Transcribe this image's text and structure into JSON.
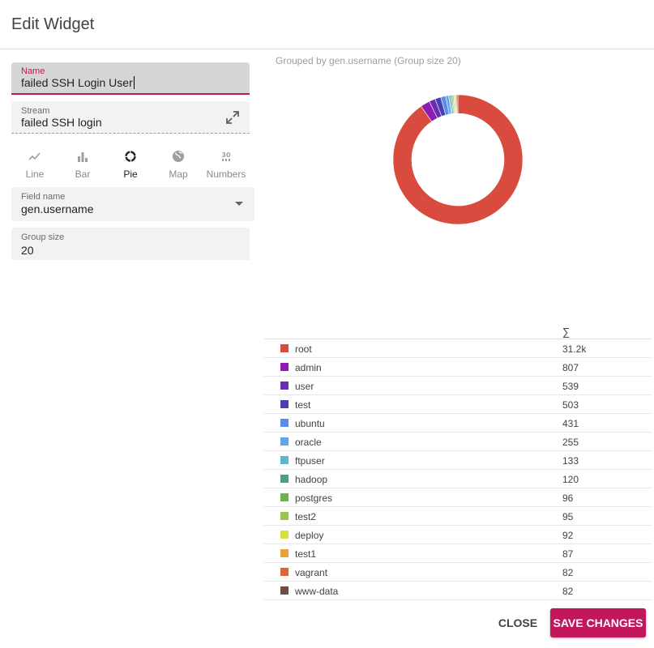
{
  "dialog": {
    "title": "Edit Widget"
  },
  "form": {
    "name_label": "Name",
    "name_value": "failed SSH Login User",
    "stream_label": "Stream",
    "stream_value": "failed SSH login",
    "field_name_label": "Field name",
    "field_name_value": "gen.username",
    "group_size_label": "Group size",
    "group_size_value": "20"
  },
  "visualizations": [
    {
      "label": "Line",
      "icon": "line-chart-icon",
      "active": false
    },
    {
      "label": "Bar",
      "icon": "bar-chart-icon",
      "active": false
    },
    {
      "label": "Pie",
      "icon": "pie-chart-icon",
      "active": true
    },
    {
      "label": "Map",
      "icon": "globe-icon",
      "active": false
    },
    {
      "label": "Numbers",
      "icon": "numbers-icon",
      "active": false
    }
  ],
  "chart_title": "Grouped by gen.username (Group size 20)",
  "table": {
    "sum_header": "∑",
    "rows": [
      {
        "name": "root",
        "count": "31.2k",
        "color": "#d94a3f"
      },
      {
        "name": "admin",
        "count": "807",
        "color": "#8e1cb1"
      },
      {
        "name": "user",
        "count": "539",
        "color": "#6a2cb5"
      },
      {
        "name": "test",
        "count": "503",
        "color": "#4a3fb1"
      },
      {
        "name": "ubuntu",
        "count": "431",
        "color": "#5b8de8"
      },
      {
        "name": "oracle",
        "count": "255",
        "color": "#63a2ee"
      },
      {
        "name": "ftpuser",
        "count": "133",
        "color": "#5fb4d2"
      },
      {
        "name": "hadoop",
        "count": "120",
        "color": "#4f9c83"
      },
      {
        "name": "postgres",
        "count": "96",
        "color": "#6cb24f"
      },
      {
        "name": "test2",
        "count": "95",
        "color": "#9bc44e"
      },
      {
        "name": "deploy",
        "count": "92",
        "color": "#d6e03f"
      },
      {
        "name": "test1",
        "count": "87",
        "color": "#e8a23a"
      },
      {
        "name": "vagrant",
        "count": "82",
        "color": "#e0643a"
      },
      {
        "name": "www-data",
        "count": "82",
        "color": "#6e4e42"
      }
    ]
  },
  "chart_data": {
    "type": "pie",
    "title": "Grouped by gen.username (Group size 20)",
    "categories": [
      "root",
      "admin",
      "user",
      "test",
      "ubuntu",
      "oracle",
      "ftpuser",
      "hadoop",
      "postgres",
      "test2",
      "deploy",
      "test1",
      "vagrant",
      "www-data"
    ],
    "values": [
      31200,
      807,
      539,
      503,
      431,
      255,
      133,
      120,
      96,
      95,
      92,
      87,
      82,
      82
    ],
    "colors": [
      "#d94a3f",
      "#8e1cb1",
      "#6a2cb5",
      "#4a3fb1",
      "#5b8de8",
      "#63a2ee",
      "#5fb4d2",
      "#4f9c83",
      "#6cb24f",
      "#9bc44e",
      "#d6e03f",
      "#e8a23a",
      "#e0643a",
      "#6e4e42"
    ],
    "donut": true
  },
  "buttons": {
    "close": "CLOSE",
    "save": "SAVE CHANGES"
  },
  "colors": {
    "accent": "#c2185b"
  }
}
